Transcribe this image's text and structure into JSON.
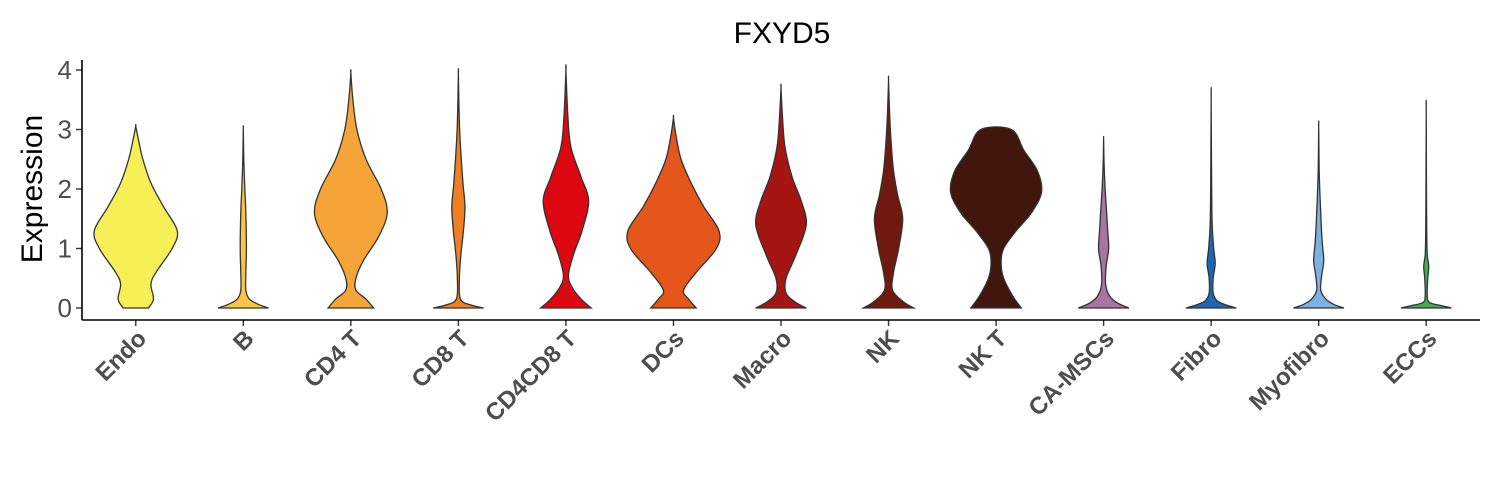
{
  "chart_data": {
    "type": "violin",
    "title": "FXYD5",
    "xlabel": "",
    "ylabel": "Expression",
    "ylim": [
      -0.2,
      4.15
    ],
    "yticks": [
      "0",
      "1",
      "2",
      "3",
      "4"
    ],
    "grid": false,
    "legend": "none",
    "categories": [
      {
        "label": "Endo",
        "color": "#F7EF56",
        "max": 3.05,
        "shape": [
          [
            0,
            0.25
          ],
          [
            0.15,
            0.35
          ],
          [
            0.4,
            0.3
          ],
          [
            0.6,
            0.4
          ],
          [
            1.0,
            0.72
          ],
          [
            1.3,
            0.82
          ],
          [
            1.7,
            0.55
          ],
          [
            2.1,
            0.3
          ],
          [
            2.5,
            0.14
          ],
          [
            2.8,
            0.06
          ],
          [
            3.05,
            0.0
          ]
        ]
      },
      {
        "label": "B",
        "color": "#F8C641",
        "max": 3.0,
        "shape": [
          [
            0,
            0.5
          ],
          [
            0.06,
            0.3
          ],
          [
            0.15,
            0.12
          ],
          [
            0.3,
            0.05
          ],
          [
            0.6,
            0.05
          ],
          [
            0.9,
            0.06
          ],
          [
            1.2,
            0.06
          ],
          [
            1.6,
            0.05
          ],
          [
            2.0,
            0.03
          ],
          [
            2.5,
            0.01
          ],
          [
            3.0,
            0.0
          ]
        ]
      },
      {
        "label": "CD4 T",
        "color": "#F5A538",
        "max": 3.95,
        "shape": [
          [
            0,
            0.45
          ],
          [
            0.15,
            0.3
          ],
          [
            0.3,
            0.1
          ],
          [
            0.5,
            0.1
          ],
          [
            0.8,
            0.25
          ],
          [
            1.2,
            0.55
          ],
          [
            1.6,
            0.72
          ],
          [
            2.0,
            0.6
          ],
          [
            2.5,
            0.3
          ],
          [
            3.0,
            0.12
          ],
          [
            3.5,
            0.04
          ],
          [
            3.95,
            0.0
          ]
        ]
      },
      {
        "label": "CD8 T",
        "color": "#F07F22",
        "max": 3.92,
        "shape": [
          [
            0,
            0.5
          ],
          [
            0.05,
            0.25
          ],
          [
            0.15,
            0.04
          ],
          [
            0.5,
            0.02
          ],
          [
            0.9,
            0.05
          ],
          [
            1.3,
            0.1
          ],
          [
            1.7,
            0.13
          ],
          [
            2.1,
            0.09
          ],
          [
            2.6,
            0.05
          ],
          [
            3.1,
            0.02
          ],
          [
            3.92,
            0.0
          ]
        ]
      },
      {
        "label": "CD4CD8 T",
        "color": "#DC0711",
        "max": 3.99,
        "shape": [
          [
            0,
            0.5
          ],
          [
            0.15,
            0.3
          ],
          [
            0.35,
            0.12
          ],
          [
            0.55,
            0.05
          ],
          [
            0.9,
            0.15
          ],
          [
            1.3,
            0.32
          ],
          [
            1.8,
            0.45
          ],
          [
            2.2,
            0.3
          ],
          [
            2.7,
            0.1
          ],
          [
            3.2,
            0.04
          ],
          [
            3.99,
            0.0
          ]
        ]
      },
      {
        "label": "DCs",
        "color": "#E4561A",
        "max": 3.2,
        "shape": [
          [
            0,
            0.45
          ],
          [
            0.15,
            0.3
          ],
          [
            0.3,
            0.2
          ],
          [
            0.6,
            0.45
          ],
          [
            1.0,
            0.85
          ],
          [
            1.3,
            0.9
          ],
          [
            1.7,
            0.6
          ],
          [
            2.1,
            0.35
          ],
          [
            2.5,
            0.15
          ],
          [
            2.9,
            0.05
          ],
          [
            3.2,
            0.0
          ]
        ]
      },
      {
        "label": "Macro",
        "color": "#A51612",
        "max": 3.7,
        "shape": [
          [
            0,
            0.5
          ],
          [
            0.1,
            0.28
          ],
          [
            0.25,
            0.1
          ],
          [
            0.5,
            0.1
          ],
          [
            0.9,
            0.3
          ],
          [
            1.4,
            0.5
          ],
          [
            1.8,
            0.4
          ],
          [
            2.2,
            0.22
          ],
          [
            2.7,
            0.08
          ],
          [
            3.2,
            0.03
          ],
          [
            3.7,
            0.0
          ]
        ]
      },
      {
        "label": "NK",
        "color": "#6F190F",
        "max": 3.83,
        "shape": [
          [
            0,
            0.5
          ],
          [
            0.1,
            0.3
          ],
          [
            0.3,
            0.08
          ],
          [
            0.6,
            0.1
          ],
          [
            1.0,
            0.2
          ],
          [
            1.5,
            0.28
          ],
          [
            1.9,
            0.18
          ],
          [
            2.3,
            0.1
          ],
          [
            2.8,
            0.05
          ],
          [
            3.3,
            0.02
          ],
          [
            3.83,
            0.0
          ]
        ]
      },
      {
        "label": "NK T",
        "color": "#40160D",
        "max": 3.0,
        "shape": [
          [
            0,
            0.5
          ],
          [
            0.2,
            0.33
          ],
          [
            0.5,
            0.15
          ],
          [
            0.75,
            0.1
          ],
          [
            1.0,
            0.15
          ],
          [
            1.3,
            0.4
          ],
          [
            1.6,
            0.7
          ],
          [
            1.95,
            0.9
          ],
          [
            2.3,
            0.82
          ],
          [
            2.65,
            0.55
          ],
          [
            3.0,
            0.3
          ]
        ]
      },
      {
        "label": "CA-MSCs",
        "color": "#A874A2",
        "max": 2.83,
        "shape": [
          [
            0,
            0.5
          ],
          [
            0.08,
            0.28
          ],
          [
            0.2,
            0.12
          ],
          [
            0.4,
            0.04
          ],
          [
            0.7,
            0.05
          ],
          [
            1.0,
            0.1
          ],
          [
            1.3,
            0.08
          ],
          [
            1.6,
            0.06
          ],
          [
            2.0,
            0.03
          ],
          [
            2.4,
            0.01
          ],
          [
            2.83,
            0.0
          ]
        ]
      },
      {
        "label": "Fibro",
        "color": "#1E66B1",
        "max": 3.52,
        "shape": [
          [
            0,
            0.5
          ],
          [
            0.05,
            0.3
          ],
          [
            0.12,
            0.12
          ],
          [
            0.25,
            0.04
          ],
          [
            0.5,
            0.04
          ],
          [
            0.75,
            0.08
          ],
          [
            1.0,
            0.05
          ],
          [
            1.4,
            0.02
          ],
          [
            2.0,
            0.01
          ],
          [
            3.52,
            0.0
          ]
        ]
      },
      {
        "label": "Myofibro",
        "color": "#7DB2E0",
        "max": 3.05,
        "shape": [
          [
            0,
            0.5
          ],
          [
            0.06,
            0.3
          ],
          [
            0.15,
            0.14
          ],
          [
            0.3,
            0.04
          ],
          [
            0.55,
            0.06
          ],
          [
            0.8,
            0.1
          ],
          [
            1.1,
            0.07
          ],
          [
            1.4,
            0.05
          ],
          [
            1.8,
            0.03
          ],
          [
            2.3,
            0.01
          ],
          [
            3.05,
            0.0
          ]
        ]
      },
      {
        "label": "ECCs",
        "color": "#43AA54",
        "max": 3.33,
        "shape": [
          [
            0,
            0.5
          ],
          [
            0.04,
            0.3
          ],
          [
            0.09,
            0.07
          ],
          [
            0.2,
            0.02
          ],
          [
            0.5,
            0.03
          ],
          [
            0.7,
            0.05
          ],
          [
            0.9,
            0.02
          ],
          [
            1.3,
            0.01
          ],
          [
            2.0,
            0.005
          ],
          [
            3.33,
            0.0
          ]
        ]
      }
    ]
  }
}
